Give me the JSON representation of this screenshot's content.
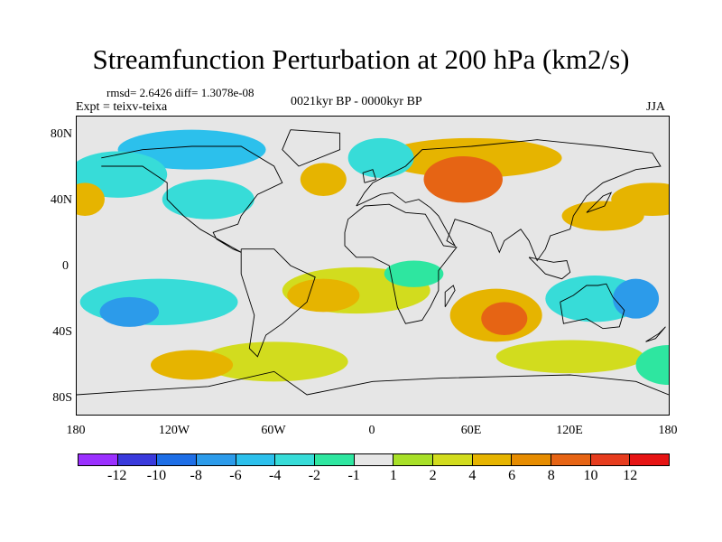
{
  "title": "Streamfunction Perturbation at 200 hPa (km2/s)",
  "stats": "rmsd= 2.6426 diff= 1.3078e-08",
  "experiment": "Expt = teixv-teixa",
  "period": "0021kyr BP - 0000kyr BP",
  "season": "JJA",
  "axes": {
    "y_ticks": [
      "80N",
      "40N",
      "0",
      "40S",
      "80S"
    ],
    "x_ticks": [
      "180",
      "120W",
      "60W",
      "0",
      "60E",
      "120E",
      "180"
    ]
  },
  "colorbar": {
    "labels": [
      "-12",
      "-10",
      "-8",
      "-6",
      "-4",
      "-2",
      "-1",
      "1",
      "2",
      "4",
      "6",
      "8",
      "10",
      "12"
    ],
    "colors": [
      "#9b30ff",
      "#3a3adc",
      "#1e6ee6",
      "#2c9bea",
      "#2cc0ec",
      "#37dcd8",
      "#2ee6a0",
      "#e6e6e6",
      "#a8e028",
      "#d2dc1e",
      "#e6b400",
      "#e68c00",
      "#e66414",
      "#e63c1e",
      "#e61414"
    ]
  },
  "chart_data": {
    "type": "heatmap",
    "variable": "Streamfunction Perturbation",
    "level_hpa": 200,
    "units": "km2/s",
    "lon_range": [
      -180,
      180
    ],
    "lat_range": [
      -90,
      90
    ],
    "levels": [
      -12,
      -10,
      -8,
      -6,
      -4,
      -2,
      -1,
      1,
      2,
      4,
      6,
      8,
      10,
      12
    ],
    "anomalies": [
      {
        "lon": 55,
        "lat": 52,
        "value": 9,
        "rx": 24,
        "ry": 14
      },
      {
        "lon": 60,
        "lat": 65,
        "value": 4,
        "rx": 55,
        "ry": 12
      },
      {
        "lon": -30,
        "lat": 52,
        "value": 5,
        "rx": 14,
        "ry": 10
      },
      {
        "lon": 170,
        "lat": 40,
        "value": 5,
        "rx": 25,
        "ry": 10
      },
      {
        "lon": 140,
        "lat": 30,
        "value": 4,
        "rx": 25,
        "ry": 9
      },
      {
        "lon": -175,
        "lat": 40,
        "value": 5,
        "rx": 12,
        "ry": 10
      },
      {
        "lon": -110,
        "lat": 70,
        "value": -5,
        "rx": 45,
        "ry": 12
      },
      {
        "lon": -155,
        "lat": 55,
        "value": -3,
        "rx": 30,
        "ry": 14
      },
      {
        "lon": -100,
        "lat": 40,
        "value": -3,
        "rx": 28,
        "ry": 12
      },
      {
        "lon": 5,
        "lat": 65,
        "value": -3,
        "rx": 20,
        "ry": 12
      },
      {
        "lon": -148,
        "lat": -28,
        "value": -7,
        "rx": 18,
        "ry": 9
      },
      {
        "lon": -130,
        "lat": -22,
        "value": -3,
        "rx": 48,
        "ry": 14
      },
      {
        "lon": 160,
        "lat": -20,
        "value": -7,
        "rx": 14,
        "ry": 12
      },
      {
        "lon": 135,
        "lat": -20,
        "value": -3,
        "rx": 30,
        "ry": 14
      },
      {
        "lon": 80,
        "lat": -32,
        "value": 8,
        "rx": 14,
        "ry": 10
      },
      {
        "lon": 75,
        "lat": -30,
        "value": 4,
        "rx": 28,
        "ry": 16
      },
      {
        "lon": -30,
        "lat": -18,
        "value": 4,
        "rx": 22,
        "ry": 10
      },
      {
        "lon": -10,
        "lat": -15,
        "value": 2,
        "rx": 45,
        "ry": 14
      },
      {
        "lon": -110,
        "lat": -60,
        "value": 4,
        "rx": 25,
        "ry": 9
      },
      {
        "lon": -60,
        "lat": -58,
        "value": 2,
        "rx": 45,
        "ry": 12
      },
      {
        "lon": 25,
        "lat": -5,
        "value": -2,
        "rx": 18,
        "ry": 8
      },
      {
        "lon": 120,
        "lat": -55,
        "value": 2,
        "rx": 45,
        "ry": 10
      },
      {
        "lon": 180,
        "lat": -60,
        "value": -2,
        "rx": 20,
        "ry": 12
      }
    ]
  }
}
